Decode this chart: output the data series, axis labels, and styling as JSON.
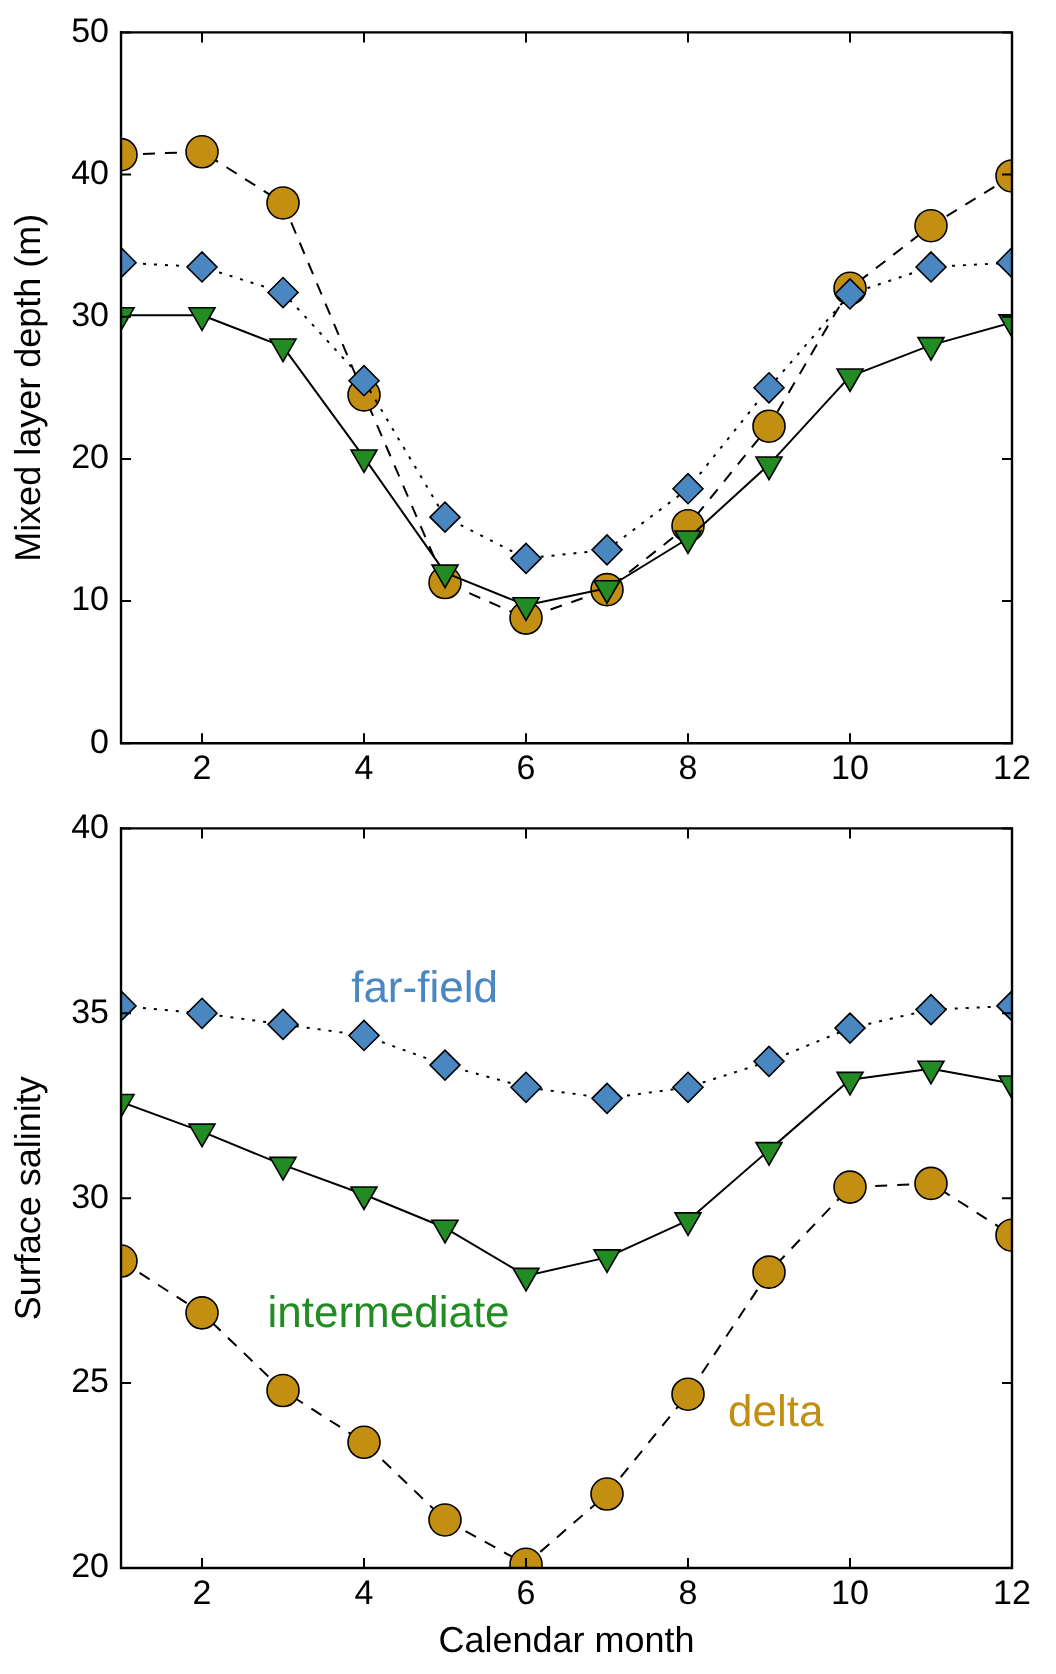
{
  "chart_data": [
    {
      "type": "line",
      "ylabel": "Mixed layer depth (m)",
      "x": [
        1,
        2,
        3,
        4,
        5,
        6,
        7,
        8,
        9,
        10,
        11,
        12
      ],
      "xlim": [
        1,
        12
      ],
      "xticks": [
        2,
        4,
        6,
        8,
        10,
        12
      ],
      "ylim": [
        0,
        50
      ],
      "yticks": [
        0,
        10,
        20,
        30,
        40,
        50
      ],
      "grid": false,
      "legend": false,
      "series": [
        {
          "color": "#c38f12",
          "marker": "circle",
          "line_style": "dashed",
          "values": [
            41.4,
            41.6,
            38,
            24.5,
            11.3,
            8.8,
            10.8,
            15.3,
            22.3,
            32,
            36.4,
            39.9
          ]
        },
        {
          "color": "#4a87c0",
          "marker": "diamond",
          "line_style": "dotted",
          "values": [
            33.8,
            33.5,
            31.7,
            25.5,
            15.9,
            13,
            13.6,
            17.9,
            25,
            31.6,
            33.5,
            33.8
          ]
        },
        {
          "color": "#238b23",
          "marker": "triangle",
          "line_style": "solid",
          "values": [
            30.1,
            30.1,
            27.9,
            20.1,
            12,
            9.7,
            10.9,
            14.4,
            19.6,
            25.8,
            28,
            29.6
          ]
        }
      ]
    },
    {
      "type": "line",
      "xlabel": "Calendar month",
      "ylabel": "Surface salinity",
      "x": [
        1,
        2,
        3,
        4,
        5,
        6,
        7,
        8,
        9,
        10,
        11,
        12
      ],
      "xlim": [
        1,
        12
      ],
      "xticks": [
        2,
        4,
        6,
        8,
        10,
        12
      ],
      "ylim": [
        20,
        40
      ],
      "yticks": [
        20,
        25,
        30,
        35,
        40
      ],
      "grid": false,
      "legend": false,
      "series": [
        {
          "name": "far-field",
          "color": "#4a87c0",
          "marker": "diamond",
          "line_style": "dotted",
          "values": [
            35.2,
            35,
            34.7,
            34.4,
            33.6,
            33,
            32.7,
            33,
            33.7,
            34.6,
            35.1,
            35.2
          ]
        },
        {
          "name": "intermediate",
          "color": "#238b23",
          "marker": "triangle",
          "line_style": "solid",
          "values": [
            32.6,
            31.8,
            30.9,
            30.1,
            29.2,
            27.9,
            28.4,
            29.4,
            31.3,
            33.2,
            33.5,
            33.1
          ]
        },
        {
          "name": "delta",
          "color": "#c38f12",
          "marker": "circle",
          "line_style": "dashed",
          "values": [
            28.3,
            26.9,
            24.8,
            23.4,
            21.3,
            20.1,
            22,
            24.7,
            28,
            30.3,
            30.4,
            29
          ]
        }
      ]
    }
  ]
}
